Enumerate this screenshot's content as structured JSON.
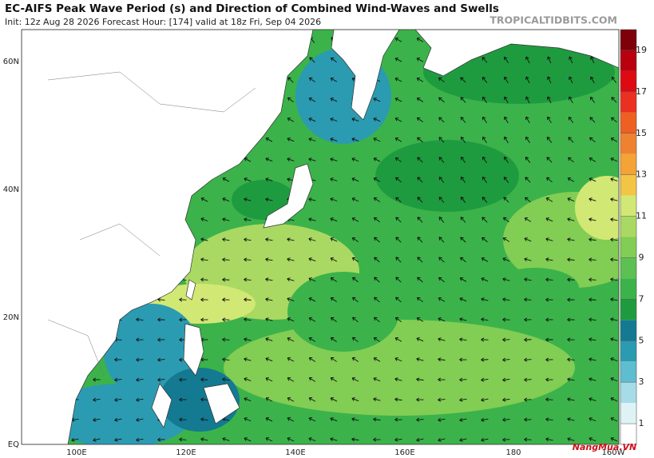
{
  "header": {
    "title": "EC-AIFS Peak Wave Period (s) and Direction of Combined Wind-Waves and Swells",
    "subtitle": "Init: 12z Aug 28 2026   Forecast Hour: [174]   valid at 18z Fri, Sep 04 2026",
    "watermark": "TROPICALTIDBITS.COM"
  },
  "axes": {
    "lat_labels": [
      "60N",
      "40N",
      "20N",
      "EQ"
    ],
    "lon_labels": [
      "100E",
      "120E",
      "140E",
      "160E",
      "180",
      "160W"
    ]
  },
  "colorbar": {
    "range": [
      0,
      20
    ],
    "ticks": [
      1,
      3,
      5,
      7,
      9,
      11,
      13,
      15,
      17,
      19
    ],
    "colors": [
      "#ffffff",
      "#dff3f7",
      "#a6dce8",
      "#5fbdd0",
      "#2b9bb1",
      "#137a92",
      "#1f9b3f",
      "#3bb34a",
      "#5cc152",
      "#82cd54",
      "#a9d962",
      "#d2e874",
      "#f3c545",
      "#f3a434",
      "#ef8230",
      "#ee6022",
      "#ea3020",
      "#dd0a12",
      "#b8000f",
      "#7e0008"
    ]
  },
  "footer": {
    "logo": "NangMua.VN"
  }
}
